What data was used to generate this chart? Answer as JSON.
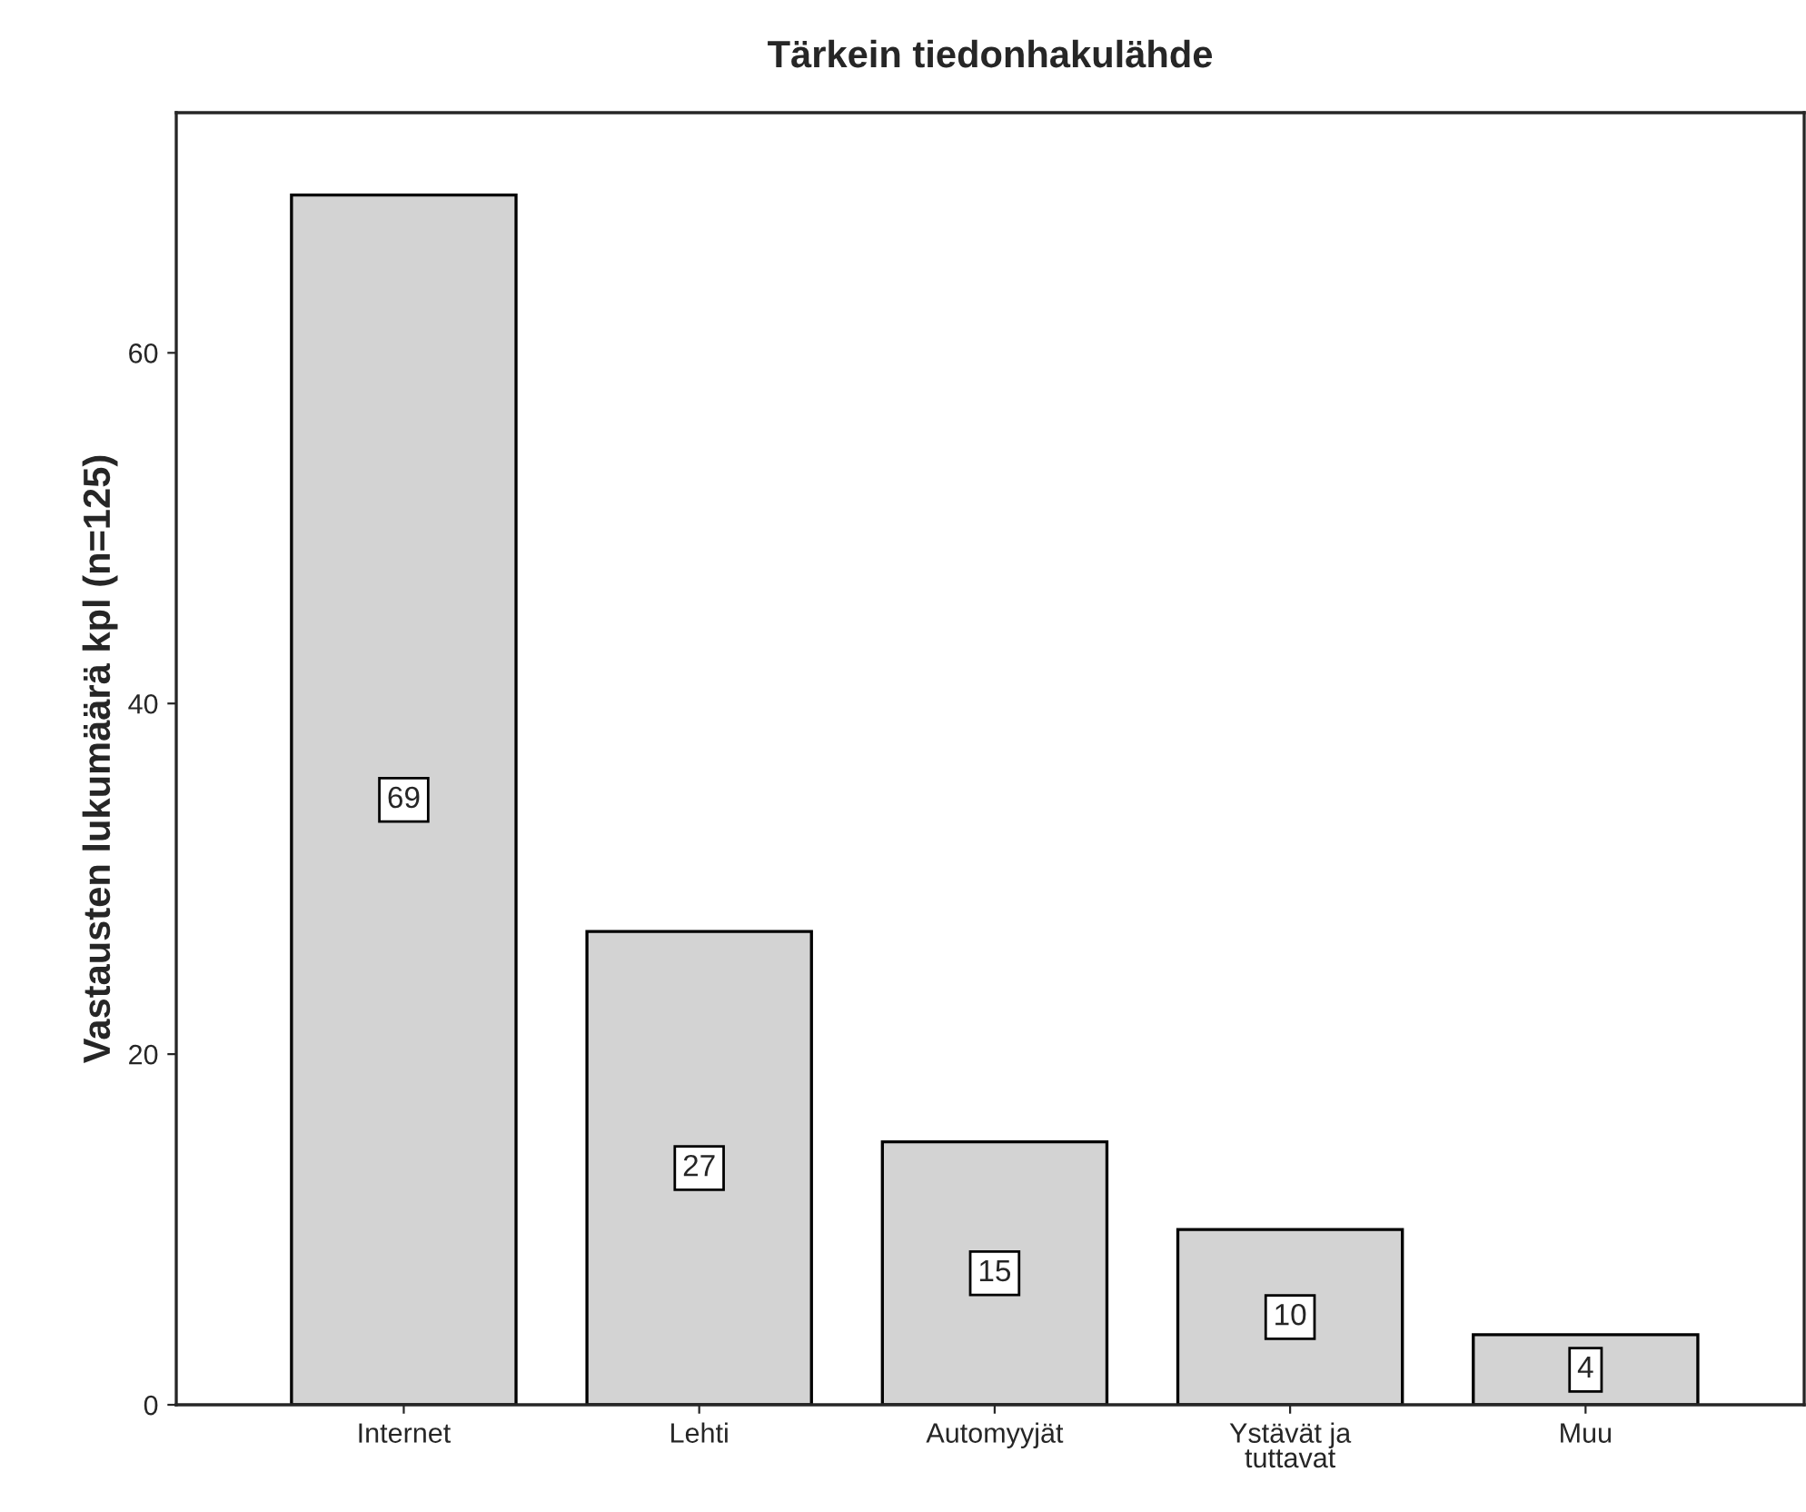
{
  "chart_data": {
    "type": "bar",
    "title": "Tärkein tiedonhakulähde",
    "ylabel": "Vastausten lukumäärä kpl (n=125)",
    "categories": [
      "Internet",
      "Lehti",
      "Automyyjät",
      "Ystävät ja\ntuttavat",
      "Muu"
    ],
    "values": [
      69,
      27,
      15,
      10,
      4
    ],
    "color": "#d3d3d3",
    "ylim": [
      0,
      73.7
    ],
    "yticks": [
      0,
      20,
      40,
      60
    ],
    "grid": false,
    "legend": false,
    "data_labels": true
  }
}
